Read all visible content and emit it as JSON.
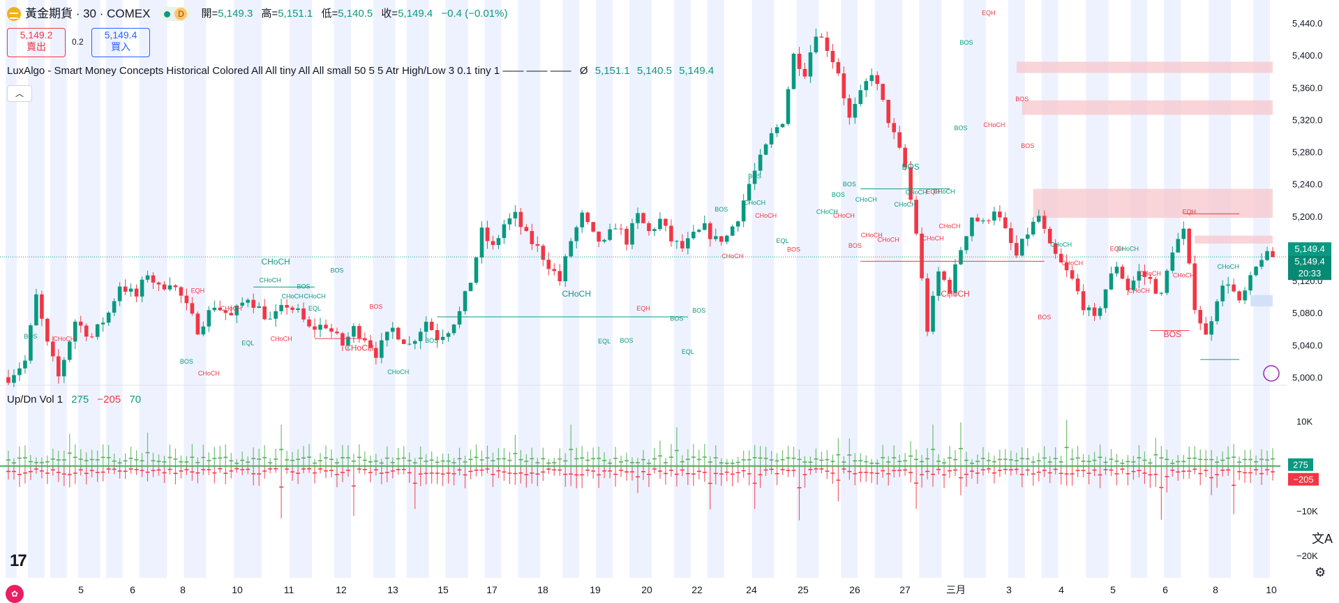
{
  "header": {
    "symbol_title": "黃金期貨 · 30 · COMEX",
    "live_badge": "D",
    "ohlc": [
      {
        "key": "開=",
        "value": "5,149.3"
      },
      {
        "key": "高=",
        "value": "5,151.1"
      },
      {
        "key": "低=",
        "value": "5,140.5"
      },
      {
        "key": "收=",
        "value": "5,149.4"
      }
    ],
    "change": "−0.4 (−0.01%)"
  },
  "trade": {
    "sell_price": "5,149.2",
    "sell_label": "賣出",
    "spread": "0.2",
    "buy_price": "5,149.4",
    "buy_label": "買入"
  },
  "indicator": {
    "name": "LuxAlgo - Smart Money Concepts Historical Colored All All tiny All All small 50 5 5 Atr High/Low 3 0.1 tiny 1 —— —— ——",
    "values_prefix": "Ø",
    "values": [
      "5,151.1",
      "5,140.5",
      "5,149.4"
    ],
    "collapse_icon": "chevron-up-icon"
  },
  "volume_indicator": {
    "name": "Up/Dn Vol 1",
    "up": "275",
    "down": "−205",
    "delta": "70",
    "up_tag": "275",
    "down_tag": "−205"
  },
  "colors": {
    "up": "#089981",
    "down": "#f23645",
    "ob_down": "#f7c7cc",
    "ob_up": "#c9d9f5",
    "session": "#eef2ff",
    "vol_up": "#4caf50",
    "vol_down": "#f23645"
  },
  "price_tags": {
    "last": "5,149.4",
    "current": "5,149.4",
    "countdown": "20:33"
  },
  "chart_data": {
    "type": "candlestick",
    "price_axis": {
      "ticks": [
        "5,440.0",
        "5,400.0",
        "5,360.0",
        "5,320.0",
        "5,280.0",
        "5,240.0",
        "5,200.0",
        "5,160.0",
        "5,120.0",
        "5,080.0",
        "5,040.0",
        "5,000.0"
      ],
      "ylim": [
        4990,
        5460
      ]
    },
    "volume_axis": {
      "ticks": [
        "10K",
        "−10K",
        "−20K"
      ],
      "ylim": [
        -25000,
        14000
      ]
    },
    "x_labels": [
      "5",
      "6",
      "8",
      "10",
      "11",
      "12",
      "13",
      "15",
      "17",
      "18",
      "19",
      "20",
      "22",
      "24",
      "25",
      "26",
      "27",
      "三月",
      "3",
      "4",
      "5",
      "6",
      "8",
      "10"
    ],
    "path": [
      [
        0,
        5000
      ],
      [
        3,
        5020
      ],
      [
        5,
        5100
      ],
      [
        7,
        5040
      ],
      [
        9,
        5000
      ],
      [
        12,
        5070
      ],
      [
        15,
        5050
      ],
      [
        18,
        5080
      ],
      [
        20,
        5115
      ],
      [
        23,
        5100
      ],
      [
        25,
        5130
      ],
      [
        27,
        5110
      ],
      [
        29,
        5120
      ],
      [
        31,
        5100
      ],
      [
        34,
        5060
      ],
      [
        37,
        5090
      ],
      [
        40,
        5075
      ],
      [
        43,
        5100
      ],
      [
        45,
        5085
      ],
      [
        47,
        5070
      ],
      [
        50,
        5090
      ],
      [
        52,
        5080
      ],
      [
        54,
        5060
      ],
      [
        57,
        5065
      ],
      [
        60,
        5040
      ],
      [
        62,
        5060
      ],
      [
        64,
        5050
      ],
      [
        66,
        5030
      ],
      [
        69,
        5060
      ],
      [
        72,
        5040
      ],
      [
        75,
        5070
      ],
      [
        77,
        5050
      ],
      [
        79,
        5060
      ],
      [
        81,
        5080
      ],
      [
        83,
        5120
      ],
      [
        85,
        5180
      ],
      [
        87,
        5160
      ],
      [
        89,
        5190
      ],
      [
        91,
        5200
      ],
      [
        93,
        5175
      ],
      [
        95,
        5160
      ],
      [
        97,
        5140
      ],
      [
        99,
        5120
      ],
      [
        101,
        5170
      ],
      [
        103,
        5200
      ],
      [
        105,
        5175
      ],
      [
        107,
        5165
      ],
      [
        109,
        5190
      ],
      [
        111,
        5170
      ],
      [
        113,
        5200
      ],
      [
        115,
        5180
      ],
      [
        117,
        5195
      ],
      [
        119,
        5170
      ],
      [
        121,
        5160
      ],
      [
        123,
        5175
      ],
      [
        125,
        5185
      ],
      [
        127,
        5170
      ],
      [
        129,
        5175
      ],
      [
        131,
        5200
      ],
      [
        133,
        5240
      ],
      [
        135,
        5270
      ],
      [
        137,
        5300
      ],
      [
        139,
        5320
      ],
      [
        141,
        5400
      ],
      [
        143,
        5380
      ],
      [
        145,
        5430
      ],
      [
        147,
        5410
      ],
      [
        149,
        5380
      ],
      [
        151,
        5320
      ],
      [
        153,
        5350
      ],
      [
        155,
        5380
      ],
      [
        157,
        5340
      ],
      [
        159,
        5300
      ],
      [
        161,
        5260
      ],
      [
        163,
        5180
      ],
      [
        165,
        5060
      ],
      [
        167,
        5130
      ],
      [
        169,
        5110
      ],
      [
        171,
        5160
      ],
      [
        173,
        5200
      ],
      [
        175,
        5190
      ],
      [
        177,
        5210
      ],
      [
        179,
        5180
      ],
      [
        181,
        5150
      ],
      [
        183,
        5180
      ],
      [
        185,
        5200
      ],
      [
        187,
        5160
      ],
      [
        189,
        5140
      ],
      [
        191,
        5120
      ],
      [
        193,
        5090
      ],
      [
        195,
        5070
      ],
      [
        197,
        5110
      ],
      [
        199,
        5140
      ],
      [
        201,
        5110
      ],
      [
        203,
        5130
      ],
      [
        205,
        5120
      ],
      [
        207,
        5100
      ],
      [
        209,
        5160
      ],
      [
        211,
        5180
      ],
      [
        213,
        5090
      ],
      [
        215,
        5050
      ],
      [
        217,
        5100
      ],
      [
        219,
        5120
      ],
      [
        221,
        5090
      ],
      [
        223,
        5120
      ],
      [
        225,
        5150
      ],
      [
        227,
        5149.4
      ]
    ],
    "sessions": [
      [
        0,
        1
      ],
      [
        4,
        6
      ],
      [
        8,
        10
      ],
      [
        13,
        16
      ],
      [
        18,
        20
      ],
      [
        24,
        28
      ],
      [
        32,
        35
      ],
      [
        41,
        45
      ],
      [
        51,
        54
      ],
      [
        59,
        61
      ],
      [
        66,
        69
      ],
      [
        72,
        75
      ],
      [
        79,
        82
      ],
      [
        86,
        88
      ],
      [
        92,
        95
      ],
      [
        100,
        102
      ],
      [
        106,
        108
      ],
      [
        112,
        115
      ],
      [
        120,
        122
      ],
      [
        126,
        128
      ],
      [
        134,
        137
      ],
      [
        142,
        145
      ],
      [
        150,
        152
      ],
      [
        156,
        160
      ],
      [
        164,
        167
      ],
      [
        172,
        175
      ],
      [
        180,
        182
      ],
      [
        186,
        188
      ],
      [
        194,
        197
      ],
      [
        202,
        204
      ],
      [
        208,
        210
      ],
      [
        216,
        219
      ],
      [
        224,
        226
      ]
    ],
    "structure_labels": [
      {
        "t": "BOS",
        "x": 4,
        "y": 5048,
        "c": "up"
      },
      {
        "t": "CHoCH",
        "x": 10,
        "y": 5045,
        "c": "down"
      },
      {
        "t": "BOS",
        "x": 32,
        "y": 5017,
        "c": "up"
      },
      {
        "t": "EQH",
        "x": 34,
        "y": 5105,
        "c": "down"
      },
      {
        "t": "CHoCH",
        "x": 36,
        "y": 5002,
        "c": "down"
      },
      {
        "t": "CHoCH",
        "x": 40,
        "y": 5083,
        "c": "down"
      },
      {
        "t": "EQL",
        "x": 43,
        "y": 5040,
        "c": "up"
      },
      {
        "t": "CHoCH",
        "x": 48,
        "y": 5140,
        "c": "up",
        "big": true
      },
      {
        "t": "CHoCH",
        "x": 47,
        "y": 5118,
        "c": "up"
      },
      {
        "t": "CHoCH",
        "x": 51,
        "y": 5098,
        "c": "up"
      },
      {
        "t": "BOS",
        "x": 53,
        "y": 5110,
        "c": "up"
      },
      {
        "t": "CHoCH",
        "x": 55,
        "y": 5098,
        "c": "up"
      },
      {
        "t": "EQL",
        "x": 55,
        "y": 5083,
        "c": "up"
      },
      {
        "t": "CHoCH",
        "x": 49,
        "y": 5045,
        "c": "down"
      },
      {
        "t": "BOS",
        "x": 59,
        "y": 5130,
        "c": "up"
      },
      {
        "t": "CHoCH",
        "x": 63,
        "y": 5033,
        "c": "down",
        "big": true
      },
      {
        "t": "BOS",
        "x": 66,
        "y": 5085,
        "c": "down"
      },
      {
        "t": "CHoCH",
        "x": 70,
        "y": 5004,
        "c": "up"
      },
      {
        "t": "BOS",
        "x": 76,
        "y": 5043,
        "c": "up"
      },
      {
        "t": "CHoCH",
        "x": 102,
        "y": 5100,
        "c": "up",
        "big": true
      },
      {
        "t": "EQH",
        "x": 114,
        "y": 5083,
        "c": "down"
      },
      {
        "t": "EQL",
        "x": 107,
        "y": 5042,
        "c": "up"
      },
      {
        "t": "BOS",
        "x": 111,
        "y": 5043,
        "c": "up"
      },
      {
        "t": "BOS",
        "x": 120,
        "y": 5070,
        "c": "up"
      },
      {
        "t": "EQL",
        "x": 122,
        "y": 5029,
        "c": "up"
      },
      {
        "t": "BOS",
        "x": 124,
        "y": 5080,
        "c": "up"
      },
      {
        "t": "BOS",
        "x": 128,
        "y": 5206,
        "c": "up"
      },
      {
        "t": "CHoCH",
        "x": 130,
        "y": 5148,
        "c": "down"
      },
      {
        "t": "BOS",
        "x": 134,
        "y": 5247,
        "c": "up"
      },
      {
        "t": "CHoCH",
        "x": 134,
        "y": 5214,
        "c": "up"
      },
      {
        "t": "CHoCH",
        "x": 136,
        "y": 5198,
        "c": "down"
      },
      {
        "t": "EQL",
        "x": 139,
        "y": 5167,
        "c": "up"
      },
      {
        "t": "BOS",
        "x": 141,
        "y": 5156,
        "c": "down"
      },
      {
        "t": "CHoCH",
        "x": 147,
        "y": 5203,
        "c": "up"
      },
      {
        "t": "BOS",
        "x": 149,
        "y": 5224,
        "c": "up"
      },
      {
        "t": "CHoCH",
        "x": 150,
        "y": 5198,
        "c": "down"
      },
      {
        "t": "BOS",
        "x": 151,
        "y": 5237,
        "c": "up"
      },
      {
        "t": "BOS",
        "x": 152,
        "y": 5161,
        "c": "down"
      },
      {
        "t": "CHoCH",
        "x": 154,
        "y": 5218,
        "c": "up"
      },
      {
        "t": "CHoCH",
        "x": 155,
        "y": 5174,
        "c": "down"
      },
      {
        "t": "CHoCH",
        "x": 158,
        "y": 5168,
        "c": "down"
      },
      {
        "t": "CHoCH",
        "x": 161,
        "y": 5212,
        "c": "up"
      },
      {
        "t": "BOS",
        "x": 162,
        "y": 5258,
        "c": "up",
        "big": true
      },
      {
        "t": "CHoCH",
        "x": 166,
        "y": 5170,
        "c": "down"
      },
      {
        "t": "CHoCH",
        "x": 163,
        "y": 5227,
        "c": "up"
      },
      {
        "t": "EQH",
        "x": 166,
        "y": 5228,
        "c": "down"
      },
      {
        "t": "CHoCH",
        "x": 168,
        "y": 5228,
        "c": "up"
      },
      {
        "t": "CHoCH",
        "x": 169,
        "y": 5185,
        "c": "down"
      },
      {
        "t": "CHoCH",
        "x": 170,
        "y": 5100,
        "c": "down",
        "big": true
      },
      {
        "t": "BOS",
        "x": 171,
        "y": 5307,
        "c": "up"
      },
      {
        "t": "BOS",
        "x": 172,
        "y": 5413,
        "c": "up"
      },
      {
        "t": "EQH",
        "x": 176,
        "y": 5450,
        "c": "down"
      },
      {
        "t": "CHoCH",
        "x": 177,
        "y": 5311,
        "c": "down"
      },
      {
        "t": "BOS",
        "x": 182,
        "y": 5343,
        "c": "down"
      },
      {
        "t": "BOS",
        "x": 183,
        "y": 5285,
        "c": "down"
      },
      {
        "t": "BOS",
        "x": 186,
        "y": 5072,
        "c": "down"
      },
      {
        "t": "CHoCH",
        "x": 189,
        "y": 5162,
        "c": "up"
      },
      {
        "t": "CHoCH",
        "x": 191,
        "y": 5139,
        "c": "down"
      },
      {
        "t": "EQH",
        "x": 199,
        "y": 5157,
        "c": "down"
      },
      {
        "t": "CHoCH",
        "x": 201,
        "y": 5157,
        "c": "up"
      },
      {
        "t": "CHoCH",
        "x": 203,
        "y": 5105,
        "c": "down"
      },
      {
        "t": "CHoCH",
        "x": 205,
        "y": 5126,
        "c": "down"
      },
      {
        "t": "BOS",
        "x": 209,
        "y": 5050,
        "c": "down",
        "big": true
      },
      {
        "t": "EQH",
        "x": 212,
        "y": 5203,
        "c": "down"
      },
      {
        "t": "CHoCH",
        "x": 211,
        "y": 5124,
        "c": "down"
      },
      {
        "t": "CHoCH",
        "x": 219,
        "y": 5135,
        "c": "up"
      }
    ],
    "structure_lines": [
      [
        44,
        5112,
        55,
        "up"
      ],
      [
        55,
        5048,
        64,
        "down"
      ],
      [
        77,
        5075,
        122,
        "up"
      ],
      [
        153,
        5234,
        169,
        "up"
      ],
      [
        153,
        5144,
        186,
        "down"
      ],
      [
        211,
        5203,
        221,
        "down"
      ],
      [
        205,
        5058,
        212,
        "down"
      ],
      [
        214,
        5022,
        221,
        "up"
      ]
    ],
    "order_blocks": [
      {
        "x0": 181,
        "x1": 227,
        "y0": 5378,
        "y1": 5392,
        "c": "ob_down"
      },
      {
        "x0": 182,
        "x1": 227,
        "y0": 5326,
        "y1": 5344,
        "c": "ob_down"
      },
      {
        "x0": 184,
        "x1": 227,
        "y0": 5198,
        "y1": 5234,
        "c": "ob_down"
      },
      {
        "x0": 213,
        "x1": 227,
        "y0": 5166,
        "y1": 5176,
        "c": "ob_down"
      },
      {
        "x0": 223,
        "x1": 227,
        "y0": 5088,
        "y1": 5102,
        "c": "ob_up"
      }
    ]
  }
}
